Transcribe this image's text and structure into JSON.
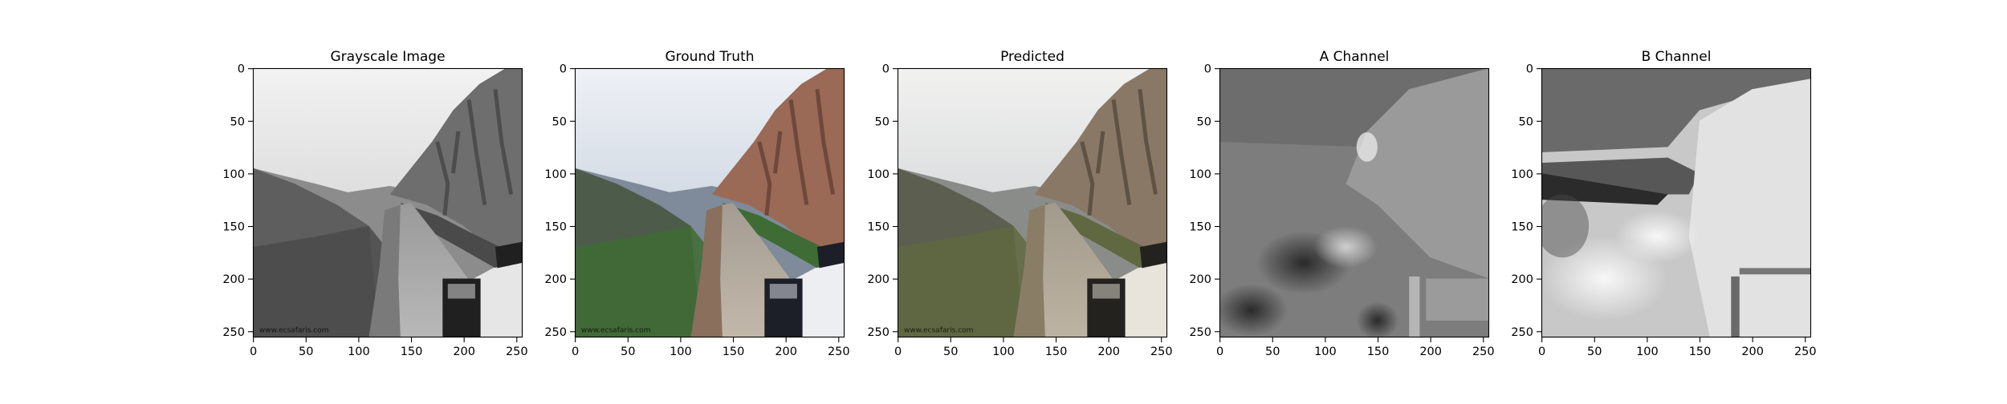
{
  "figure": {
    "background": "#ffffff",
    "panels": [
      {
        "title": "Grayscale Image",
        "kind": "gray",
        "image": "grayscale mountain dirt road with rocky cliff and vehicle hood"
      },
      {
        "title": "Ground Truth",
        "kind": "color",
        "image": "color mountain dirt road with reddish cliff, green shrubs and white vehicle"
      },
      {
        "title": "Predicted",
        "kind": "pred",
        "image": "desaturated predicted colorization of the mountain road scene"
      },
      {
        "title": "A Channel",
        "kind": "achan",
        "image": "grayscale map of the A color channel"
      },
      {
        "title": "B Channel",
        "kind": "bchan",
        "image": "grayscale map of the B color channel"
      }
    ],
    "x_ticks": [
      "0",
      "50",
      "100",
      "150",
      "200",
      "250"
    ],
    "y_ticks": [
      "0",
      "50",
      "100",
      "150",
      "200",
      "250"
    ],
    "x_tick_values": [
      0,
      50,
      100,
      150,
      200,
      250
    ],
    "y_tick_values": [
      0,
      50,
      100,
      150,
      200,
      250
    ],
    "image_extent": [
      -0.5,
      255.5
    ],
    "watermark": "www.ecsafaris.com"
  }
}
